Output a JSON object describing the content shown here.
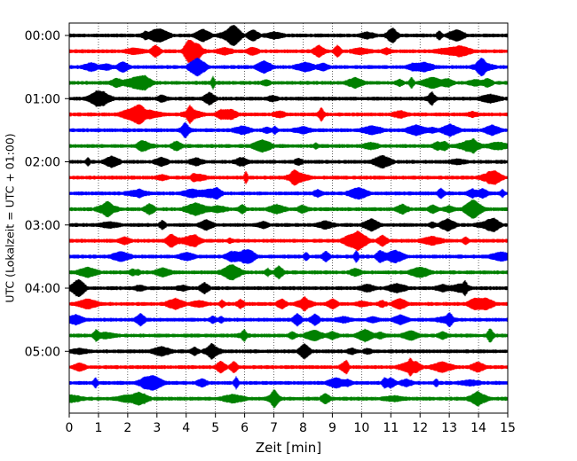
{
  "chart_data": {
    "type": "line",
    "subtype": "helicorder-seismogram",
    "title": "",
    "xlabel": "Zeit  [min]",
    "ylabel": "UTC (Lokalzeit = UTC + 01:00)",
    "xlim": [
      0,
      15
    ],
    "x_ticks": [
      "0",
      "1",
      "2",
      "3",
      "4",
      "5",
      "6",
      "7",
      "8",
      "9",
      "10",
      "11",
      "12",
      "13",
      "14",
      "15"
    ],
    "y_tick_labels": [
      "00:00",
      "01:00",
      "02:00",
      "03:00",
      "04:00",
      "05:00"
    ],
    "trace_interval_min": 15,
    "trace_count": 24,
    "trace_color_cycle": [
      "#000000",
      "#ff0000",
      "#0000ff",
      "#008000"
    ],
    "vertical_grid": "dotted",
    "traces": [
      {
        "start": "00:00",
        "color": "#000000"
      },
      {
        "start": "00:15",
        "color": "#ff0000"
      },
      {
        "start": "00:30",
        "color": "#0000ff"
      },
      {
        "start": "00:45",
        "color": "#008000"
      },
      {
        "start": "01:00",
        "color": "#000000"
      },
      {
        "start": "01:15",
        "color": "#ff0000"
      },
      {
        "start": "01:30",
        "color": "#0000ff"
      },
      {
        "start": "01:45",
        "color": "#008000"
      },
      {
        "start": "02:00",
        "color": "#000000"
      },
      {
        "start": "02:15",
        "color": "#ff0000"
      },
      {
        "start": "02:30",
        "color": "#0000ff"
      },
      {
        "start": "02:45",
        "color": "#008000"
      },
      {
        "start": "03:00",
        "color": "#000000"
      },
      {
        "start": "03:15",
        "color": "#ff0000"
      },
      {
        "start": "03:30",
        "color": "#0000ff"
      },
      {
        "start": "03:45",
        "color": "#008000"
      },
      {
        "start": "04:00",
        "color": "#000000"
      },
      {
        "start": "04:15",
        "color": "#ff0000"
      },
      {
        "start": "04:30",
        "color": "#0000ff"
      },
      {
        "start": "04:45",
        "color": "#008000"
      },
      {
        "start": "05:00",
        "color": "#000000"
      },
      {
        "start": "05:15",
        "color": "#ff0000"
      },
      {
        "start": "05:30",
        "color": "#0000ff"
      },
      {
        "start": "05:45",
        "color": "#008000"
      }
    ]
  }
}
